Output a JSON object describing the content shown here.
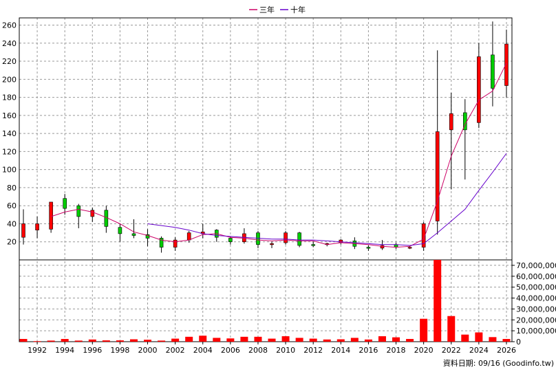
{
  "chart_data": {
    "type": "candlestick",
    "title": "",
    "footer": "資料日期: 09/16  (Goodinfo.tw)",
    "legend": {
      "placement": "top-center",
      "entries": [
        {
          "name": "三年",
          "color": "#cc0066"
        },
        {
          "name": "十年",
          "color": "#6600cc"
        }
      ]
    },
    "colors": {
      "up": "#ff0000",
      "down": "#00cc00",
      "wick": "#000000",
      "volume": "#ff0000",
      "grid": "#999999",
      "ma3": "#cc0066",
      "ma10": "#6600cc"
    },
    "price_axis": {
      "ylim": [
        0,
        268
      ],
      "ticks": [
        20,
        40,
        60,
        80,
        100,
        120,
        140,
        160,
        180,
        200,
        220,
        240,
        260
      ]
    },
    "volume_axis": {
      "ylim": [
        0,
        75000000
      ],
      "ticks": [
        0,
        10000000,
        20000000,
        30000000,
        40000000,
        50000000,
        60000000,
        70000000
      ],
      "tick_labels": [
        "0",
        "10,000,000",
        "20,000,000",
        "30,000,000",
        "40,000,000",
        "50,000,000",
        "60,000,000",
        "70,000,000"
      ]
    },
    "x_axis": {
      "ticks": [
        1992,
        1994,
        1996,
        1998,
        2000,
        2002,
        2004,
        2006,
        2008,
        2010,
        2012,
        2014,
        2016,
        2018,
        2020,
        2022,
        2024,
        2026
      ],
      "xlim": [
        1990.7,
        2026.4
      ]
    },
    "candles": [
      {
        "year": 1991,
        "open": 25,
        "high": 56,
        "low": 17,
        "close": 40
      },
      {
        "year": 1992,
        "open": 33,
        "high": 48,
        "low": 24,
        "close": 40
      },
      {
        "year": 1993,
        "open": 34,
        "high": 63,
        "low": 30,
        "close": 64
      },
      {
        "year": 1994,
        "open": 68,
        "high": 73,
        "low": 50,
        "close": 57
      },
      {
        "year": 1995,
        "open": 60,
        "high": 62,
        "low": 35,
        "close": 48
      },
      {
        "year": 1996,
        "open": 48,
        "high": 58,
        "low": 42,
        "close": 55
      },
      {
        "year": 1997,
        "open": 55,
        "high": 60,
        "low": 30,
        "close": 37
      },
      {
        "year": 1998,
        "open": 36,
        "high": 40,
        "low": 20,
        "close": 29
      },
      {
        "year": 1999,
        "open": 29,
        "high": 45,
        "low": 24,
        "close": 27
      },
      {
        "year": 2000,
        "open": 28,
        "high": 34,
        "low": 15,
        "close": 24
      },
      {
        "year": 2001,
        "open": 24,
        "high": 26,
        "low": 8,
        "close": 14
      },
      {
        "year": 2002,
        "open": 14,
        "high": 25,
        "low": 10,
        "close": 22
      },
      {
        "year": 2003,
        "open": 22,
        "high": 32,
        "low": 19,
        "close": 30
      },
      {
        "year": 2004,
        "open": 29,
        "high": 40,
        "low": 24,
        "close": 31
      },
      {
        "year": 2005,
        "open": 33,
        "high": 34,
        "low": 20,
        "close": 25
      },
      {
        "year": 2006,
        "open": 24,
        "high": 26,
        "low": 17,
        "close": 20
      },
      {
        "year": 2007,
        "open": 20,
        "high": 35,
        "low": 18,
        "close": 29
      },
      {
        "year": 2008,
        "open": 30,
        "high": 32,
        "low": 13,
        "close": 17
      },
      {
        "year": 2009,
        "open": 17,
        "high": 20,
        "low": 13,
        "close": 18
      },
      {
        "year": 2010,
        "open": 19,
        "high": 32,
        "low": 17,
        "close": 30
      },
      {
        "year": 2011,
        "open": 30,
        "high": 31,
        "low": 14,
        "close": 16
      },
      {
        "year": 2012,
        "open": 17,
        "high": 20,
        "low": 14,
        "close": 16
      },
      {
        "year": 2013,
        "open": 17,
        "high": 19,
        "low": 15,
        "close": 18
      },
      {
        "year": 2014,
        "open": 19,
        "high": 23,
        "low": 17,
        "close": 22
      },
      {
        "year": 2015,
        "open": 21,
        "high": 25,
        "low": 12,
        "close": 15
      },
      {
        "year": 2016,
        "open": 14,
        "high": 16,
        "low": 10,
        "close": 13
      },
      {
        "year": 2017,
        "open": 13,
        "high": 22,
        "low": 11,
        "close": 16
      },
      {
        "year": 2018,
        "open": 17,
        "high": 19,
        "low": 12,
        "close": 14
      },
      {
        "year": 2019,
        "open": 14,
        "high": 15,
        "low": 12,
        "close": 14
      },
      {
        "year": 2020,
        "open": 14,
        "high": 42,
        "low": 10,
        "close": 40
      },
      {
        "year": 2021,
        "open": 43,
        "high": 232,
        "low": 28,
        "close": 142
      },
      {
        "year": 2022,
        "open": 144,
        "high": 185,
        "low": 78,
        "close": 162
      },
      {
        "year": 2023,
        "open": 163,
        "high": 178,
        "low": 89,
        "close": 144
      },
      {
        "year": 2024,
        "open": 152,
        "high": 240,
        "low": 146,
        "close": 225
      },
      {
        "year": 2025,
        "open": 227,
        "high": 264,
        "low": 170,
        "close": 190
      },
      {
        "year": 2026,
        "open": 193,
        "high": 255,
        "low": 180,
        "close": 239
      }
    ],
    "volume": [
      {
        "year": 1991,
        "value": 2500000
      },
      {
        "year": 1992,
        "value": 500000
      },
      {
        "year": 1993,
        "value": 1000000
      },
      {
        "year": 1994,
        "value": 2500000
      },
      {
        "year": 1995,
        "value": 1000000
      },
      {
        "year": 1996,
        "value": 2000000
      },
      {
        "year": 1997,
        "value": 1200000
      },
      {
        "year": 1998,
        "value": 1200000
      },
      {
        "year": 1999,
        "value": 2200000
      },
      {
        "year": 2000,
        "value": 1800000
      },
      {
        "year": 2001,
        "value": 1000000
      },
      {
        "year": 2002,
        "value": 2800000
      },
      {
        "year": 2003,
        "value": 4500000
      },
      {
        "year": 2004,
        "value": 5500000
      },
      {
        "year": 2005,
        "value": 3500000
      },
      {
        "year": 2006,
        "value": 3000000
      },
      {
        "year": 2007,
        "value": 4500000
      },
      {
        "year": 2008,
        "value": 4500000
      },
      {
        "year": 2009,
        "value": 2800000
      },
      {
        "year": 2010,
        "value": 5000000
      },
      {
        "year": 2011,
        "value": 3500000
      },
      {
        "year": 2012,
        "value": 2800000
      },
      {
        "year": 2013,
        "value": 2000000
      },
      {
        "year": 2014,
        "value": 2200000
      },
      {
        "year": 2015,
        "value": 3500000
      },
      {
        "year": 2016,
        "value": 2000000
      },
      {
        "year": 2017,
        "value": 5000000
      },
      {
        "year": 2018,
        "value": 4000000
      },
      {
        "year": 2019,
        "value": 2500000
      },
      {
        "year": 2020,
        "value": 21000000
      },
      {
        "year": 2021,
        "value": 75000000
      },
      {
        "year": 2022,
        "value": 23500000
      },
      {
        "year": 2023,
        "value": 6500000
      },
      {
        "year": 2024,
        "value": 8500000
      },
      {
        "year": 2025,
        "value": 4200000
      },
      {
        "year": 2026,
        "value": 2500000
      }
    ],
    "ma3": [
      {
        "year": 1993,
        "value": 48
      },
      {
        "year": 1994,
        "value": 53
      },
      {
        "year": 1995,
        "value": 56
      },
      {
        "year": 1996,
        "value": 53
      },
      {
        "year": 1997,
        "value": 47
      },
      {
        "year": 1998,
        "value": 40
      },
      {
        "year": 1999,
        "value": 31
      },
      {
        "year": 2000,
        "value": 27
      },
      {
        "year": 2001,
        "value": 22
      },
      {
        "year": 2002,
        "value": 20
      },
      {
        "year": 2003,
        "value": 22
      },
      {
        "year": 2004,
        "value": 28
      },
      {
        "year": 2005,
        "value": 29
      },
      {
        "year": 2006,
        "value": 25
      },
      {
        "year": 2007,
        "value": 24
      },
      {
        "year": 2008,
        "value": 22
      },
      {
        "year": 2009,
        "value": 21
      },
      {
        "year": 2010,
        "value": 22
      },
      {
        "year": 2011,
        "value": 21
      },
      {
        "year": 2012,
        "value": 21
      },
      {
        "year": 2013,
        "value": 17
      },
      {
        "year": 2014,
        "value": 19
      },
      {
        "year": 2015,
        "value": 18
      },
      {
        "year": 2016,
        "value": 17
      },
      {
        "year": 2017,
        "value": 15
      },
      {
        "year": 2018,
        "value": 14
      },
      {
        "year": 2019,
        "value": 15
      },
      {
        "year": 2020,
        "value": 23
      },
      {
        "year": 2021,
        "value": 65
      },
      {
        "year": 2022,
        "value": 115
      },
      {
        "year": 2023,
        "value": 150
      },
      {
        "year": 2024,
        "value": 177
      },
      {
        "year": 2025,
        "value": 187
      },
      {
        "year": 2026,
        "value": 218
      }
    ],
    "ma10": [
      {
        "year": 2000,
        "value": 40
      },
      {
        "year": 2001,
        "value": 38
      },
      {
        "year": 2002,
        "value": 36
      },
      {
        "year": 2003,
        "value": 33
      },
      {
        "year": 2004,
        "value": 29
      },
      {
        "year": 2005,
        "value": 27
      },
      {
        "year": 2006,
        "value": 26
      },
      {
        "year": 2007,
        "value": 25
      },
      {
        "year": 2008,
        "value": 24
      },
      {
        "year": 2009,
        "value": 23
      },
      {
        "year": 2010,
        "value": 23
      },
      {
        "year": 2011,
        "value": 22
      },
      {
        "year": 2012,
        "value": 22
      },
      {
        "year": 2013,
        "value": 21
      },
      {
        "year": 2014,
        "value": 20
      },
      {
        "year": 2015,
        "value": 19
      },
      {
        "year": 2016,
        "value": 18
      },
      {
        "year": 2017,
        "value": 17
      },
      {
        "year": 2018,
        "value": 17
      },
      {
        "year": 2019,
        "value": 16
      },
      {
        "year": 2020,
        "value": 18
      },
      {
        "year": 2021,
        "value": 30
      },
      {
        "year": 2022,
        "value": 43
      },
      {
        "year": 2023,
        "value": 56
      },
      {
        "year": 2024,
        "value": 77
      },
      {
        "year": 2025,
        "value": 97
      },
      {
        "year": 2026,
        "value": 118
      }
    ]
  }
}
